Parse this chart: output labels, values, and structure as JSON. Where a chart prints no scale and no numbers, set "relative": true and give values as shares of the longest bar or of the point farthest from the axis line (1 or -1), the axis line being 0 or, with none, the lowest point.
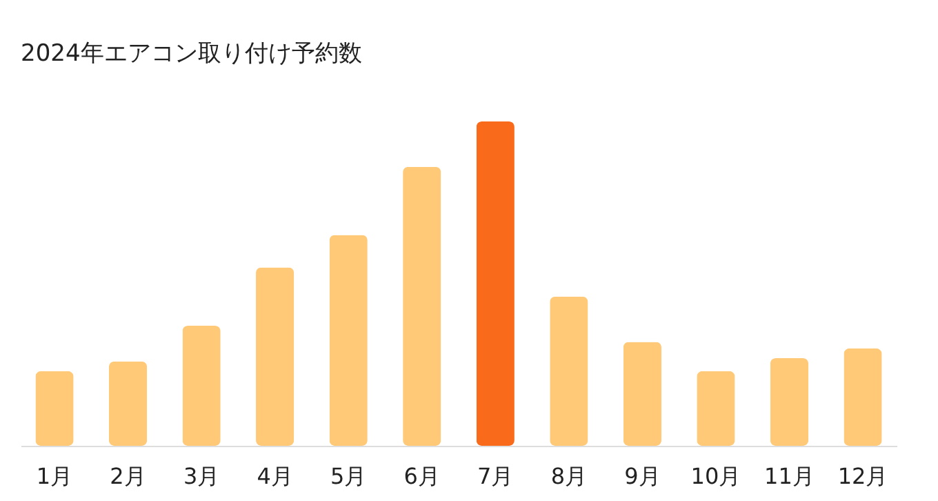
{
  "chart_data": {
    "type": "bar",
    "title": "2024年エアコン取り付け予約数",
    "relative": true,
    "categories": [
      "1月",
      "2月",
      "3月",
      "4月",
      "5月",
      "6月",
      "7月",
      "8月",
      "9月",
      "10月",
      "11月",
      "12月"
    ],
    "values": [
      0.23,
      0.26,
      0.37,
      0.55,
      0.65,
      0.86,
      1,
      0.46,
      0.32,
      0.23,
      0.27,
      0.3
    ],
    "colors": [
      "#ffc978",
      "#ffc978",
      "#ffc978",
      "#ffc978",
      "#ffc978",
      "#ffc978",
      "#f96a1b",
      "#ffc978",
      "#ffc978",
      "#ffc978",
      "#ffc978",
      "#ffc978"
    ],
    "grid": false
  }
}
